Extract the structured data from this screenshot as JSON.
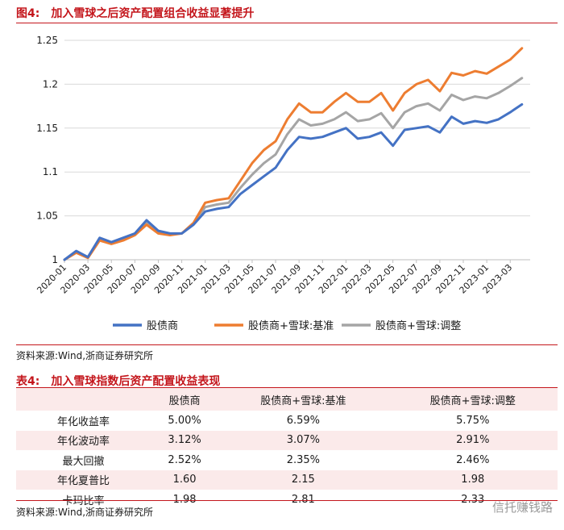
{
  "figure": {
    "number": "图4:",
    "title": "加入雪球之后资产配置组合收益显著提升"
  },
  "chart_data": {
    "type": "line",
    "title": "加入雪球之后资产配置组合收益显著提升",
    "ylim": [
      1.0,
      1.25
    ],
    "y_ticks": [
      "1",
      "1.05",
      "1.1",
      "1.15",
      "1.2",
      "1.25"
    ],
    "x_ticks": [
      "2020-01",
      "2020-03",
      "2020-05",
      "2020-07",
      "2020-09",
      "2020-11",
      "2021-01",
      "2021-03",
      "2021-05",
      "2021-07",
      "2021-09",
      "2021-11",
      "2022-01",
      "2022-03",
      "2022-05",
      "2022-07",
      "2022-09",
      "2022-11",
      "2023-01",
      "2023-03"
    ],
    "grid": "horizontal",
    "legend_position": "bottom",
    "x": [
      "2020-01",
      "2020-02",
      "2020-03",
      "2020-04",
      "2020-05",
      "2020-06",
      "2020-07",
      "2020-08",
      "2020-09",
      "2020-10",
      "2020-11",
      "2020-12",
      "2021-01",
      "2021-02",
      "2021-03",
      "2021-04",
      "2021-05",
      "2021-06",
      "2021-07",
      "2021-08",
      "2021-09",
      "2021-10",
      "2021-11",
      "2021-12",
      "2022-01",
      "2022-02",
      "2022-03",
      "2022-04",
      "2022-05",
      "2022-06",
      "2022-07",
      "2022-08",
      "2022-09",
      "2022-10",
      "2022-11",
      "2022-12",
      "2023-01",
      "2023-02",
      "2023-03",
      "2023-04"
    ],
    "series": [
      {
        "name": "股债商",
        "color": "#4472c4",
        "values": [
          1.0,
          1.01,
          1.003,
          1.025,
          1.02,
          1.025,
          1.03,
          1.045,
          1.033,
          1.03,
          1.03,
          1.04,
          1.055,
          1.058,
          1.06,
          1.075,
          1.085,
          1.095,
          1.105,
          1.125,
          1.14,
          1.138,
          1.14,
          1.145,
          1.15,
          1.138,
          1.14,
          1.145,
          1.13,
          1.148,
          1.15,
          1.152,
          1.145,
          1.163,
          1.155,
          1.158,
          1.156,
          1.16,
          1.168,
          1.177
        ]
      },
      {
        "name": "股债商+雪球:基准",
        "color": "#ed7d31",
        "values": [
          1.0,
          1.008,
          1.002,
          1.022,
          1.018,
          1.022,
          1.028,
          1.04,
          1.03,
          1.028,
          1.03,
          1.042,
          1.065,
          1.068,
          1.07,
          1.09,
          1.11,
          1.125,
          1.135,
          1.16,
          1.178,
          1.168,
          1.168,
          1.18,
          1.19,
          1.18,
          1.18,
          1.19,
          1.17,
          1.19,
          1.2,
          1.205,
          1.192,
          1.213,
          1.21,
          1.215,
          1.212,
          1.22,
          1.228,
          1.241
        ]
      },
      {
        "name": "股债商+雪球:调整",
        "color": "#a5a5a5",
        "values": [
          1.0,
          1.009,
          1.003,
          1.023,
          1.019,
          1.023,
          1.029,
          1.042,
          1.031,
          1.029,
          1.03,
          1.041,
          1.06,
          1.063,
          1.065,
          1.082,
          1.097,
          1.11,
          1.12,
          1.143,
          1.16,
          1.153,
          1.155,
          1.16,
          1.168,
          1.158,
          1.16,
          1.167,
          1.15,
          1.168,
          1.175,
          1.178,
          1.17,
          1.188,
          1.182,
          1.186,
          1.184,
          1.19,
          1.198,
          1.207
        ]
      }
    ]
  },
  "source_label": "资料来源:Wind,浙商证券研究所",
  "table": {
    "number": "表4:",
    "title": "加入雪球指数后资产配置收益表现",
    "headers": [
      "",
      "股债商",
      "股债商+雪球:基准",
      "股债商+雪球:调整"
    ],
    "rows": [
      [
        "年化收益率",
        "5.00%",
        "6.59%",
        "5.75%"
      ],
      [
        "年化波动率",
        "3.12%",
        "3.07%",
        "2.91%"
      ],
      [
        "最大回撤",
        "2.52%",
        "2.35%",
        "2.46%"
      ],
      [
        "年化夏普比",
        "1.60",
        "2.15",
        "1.98"
      ],
      [
        "卡玛比率",
        "1.98",
        "2.81",
        "2.33"
      ]
    ]
  },
  "table_source": "资料来源:Wind,浙商证券研究所",
  "watermark": "信托赚钱路"
}
